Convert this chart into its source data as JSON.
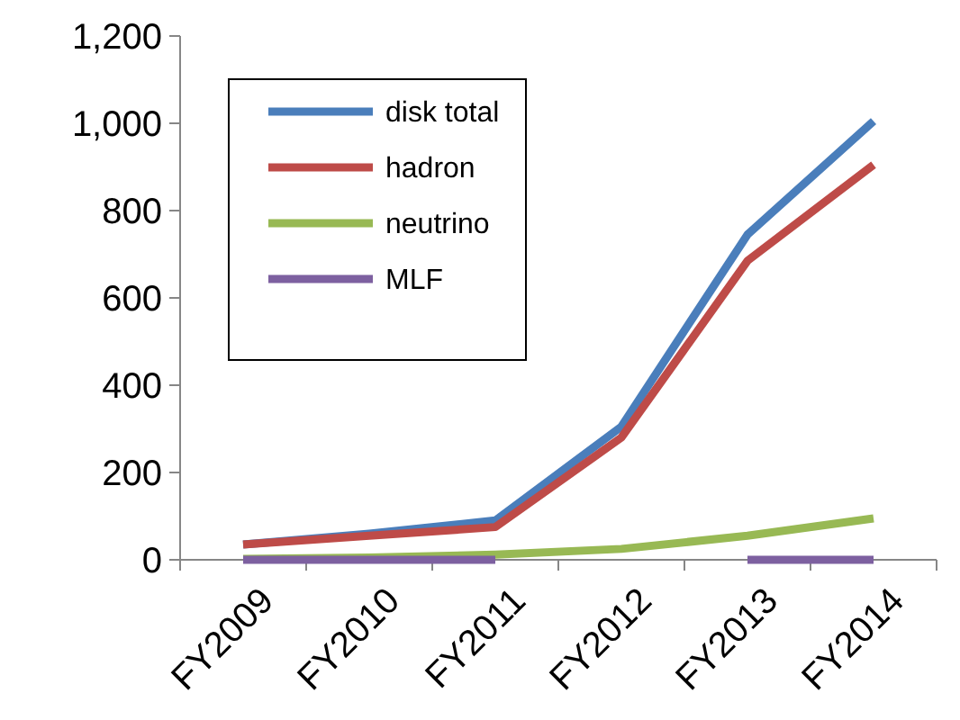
{
  "chart_data": {
    "type": "line",
    "categories": [
      "FY2009",
      "FY2010",
      "FY2011",
      "FY2012",
      "FY2013",
      "FY2014"
    ],
    "series": [
      {
        "name": "disk total",
        "color": "#4a7ebb",
        "values": [
          35,
          60,
          90,
          305,
          745,
          1005
        ]
      },
      {
        "name": "hadron",
        "color": "#be4b48",
        "values": [
          35,
          55,
          75,
          280,
          685,
          905
        ]
      },
      {
        "name": "neutrino",
        "color": "#98b954",
        "values": [
          2,
          5,
          12,
          25,
          55,
          95
        ]
      },
      {
        "name": "MLF",
        "color": "#7d60a0",
        "values": [
          0,
          0,
          0,
          null,
          0,
          0
        ]
      }
    ],
    "ylim": [
      0,
      1200
    ],
    "yticks": [
      {
        "value": 0,
        "label": "0"
      },
      {
        "value": 200,
        "label": "200"
      },
      {
        "value": 400,
        "label": "400"
      },
      {
        "value": 600,
        "label": "600"
      },
      {
        "value": 800,
        "label": "800"
      },
      {
        "value": 1000,
        "label": "1,000"
      },
      {
        "value": 1200,
        "label": "1,200"
      }
    ],
    "grid": false,
    "legend": "top left",
    "marker": "none",
    "line_style": "solid"
  }
}
